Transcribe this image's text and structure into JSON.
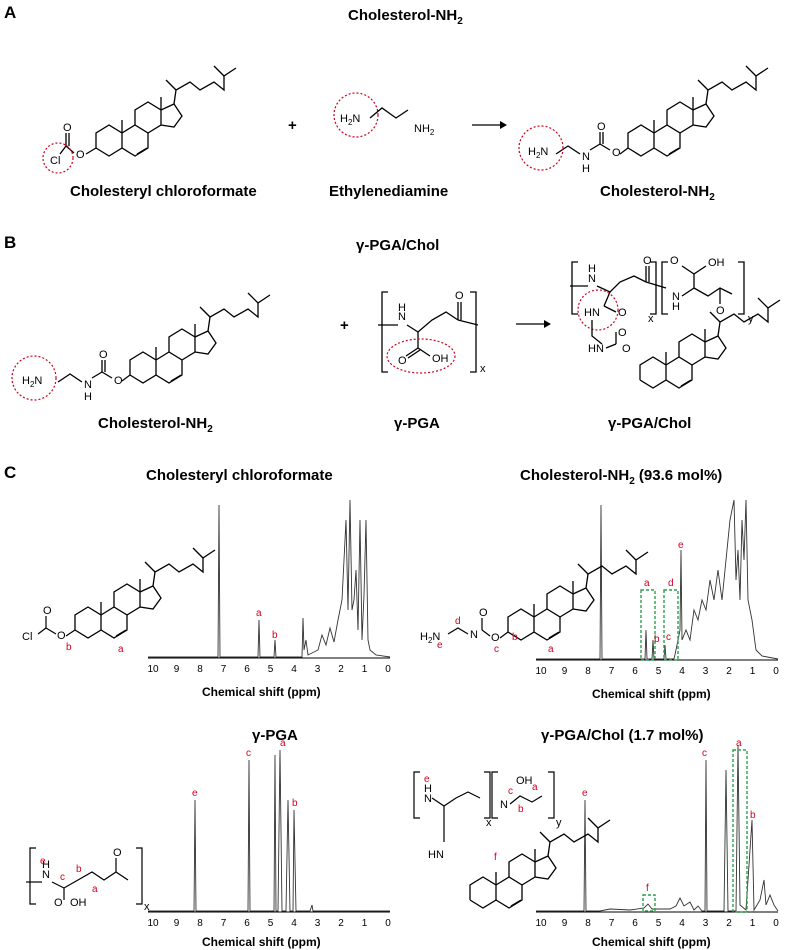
{
  "panels": {
    "A": {
      "letter": "A",
      "title": "Cholesterol-NH",
      "title_sub": "2",
      "plus": "+",
      "reactant1": "Cholesteryl chloroformate",
      "reactant2": "Ethylenediamine",
      "product": "Cholesterol-NH",
      "product_sub": "2"
    },
    "B": {
      "letter": "B",
      "title": "γ-PGA/Chol",
      "plus": "+",
      "reactant1": "Cholesterol-NH",
      "reactant1_sub": "2",
      "reactant2": "γ-PGA",
      "product": "γ-PGA/Chol"
    },
    "C": {
      "letter": "C",
      "spectra": [
        {
          "title": "Cholesteryl chloroformate",
          "xlabel": "Chemical shift (ppm)"
        },
        {
          "title": "Cholesterol-NH",
          "title_sub": "2",
          "title_suffix": " (93.6 mol%)",
          "xlabel": "Chemical shift (ppm)"
        },
        {
          "title": "γ-PGA",
          "xlabel": "Chemical shift (ppm)"
        },
        {
          "title": "γ-PGA/Chol (1.7 mol%)",
          "xlabel": "Chemical shift (ppm)"
        }
      ],
      "ticks": [
        "10",
        "9",
        "8",
        "7",
        "6",
        "5",
        "4",
        "3",
        "2",
        "1",
        "0"
      ]
    }
  },
  "atoms": {
    "cl": "Cl",
    "o": "O",
    "h": "H",
    "h2n": "H",
    "two": "2",
    "n": "N",
    "nh2": "NH",
    "hn": "HN",
    "oh": "OH",
    "x": "x",
    "y": "y",
    "nhlabel": "N"
  },
  "peak_labels": {
    "s1": [
      "a",
      "b"
    ],
    "s1_struct": [
      "b",
      "a"
    ],
    "s2": [
      "a",
      "b",
      "c",
      "d",
      "e"
    ],
    "s2_struct": [
      "e",
      "d",
      "c",
      "b",
      "a"
    ],
    "s3": [
      "e",
      "c",
      "a",
      "b"
    ],
    "s3_struct": [
      "e",
      "c",
      "b",
      "a"
    ],
    "s4": [
      "e",
      "c",
      "a",
      "b",
      "f"
    ],
    "s4_struct": [
      "e",
      "c",
      "b",
      "a",
      "f"
    ]
  },
  "colors": {
    "accent_red": "#d0021b",
    "accent_green": "#2e9e4a",
    "line": "#000000",
    "spectrum": "#333333"
  }
}
